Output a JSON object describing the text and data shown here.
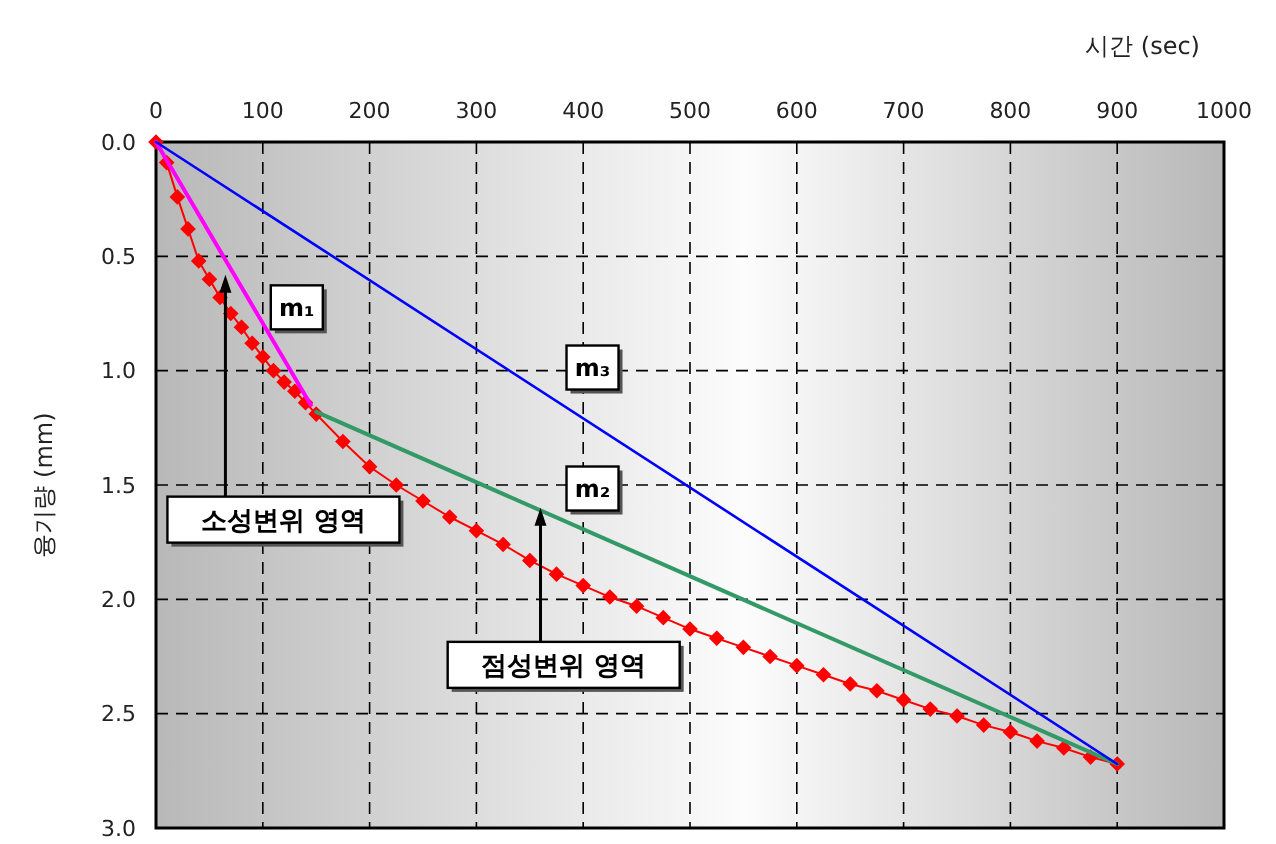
{
  "chart_data": {
    "type": "line",
    "xlabel": "시간 (sec)",
    "ylabel": "융기량 (mm)",
    "xlim": [
      0,
      1000
    ],
    "xticks": [
      0,
      100,
      200,
      300,
      400,
      500,
      600,
      700,
      800,
      900,
      1000
    ],
    "ylim": [
      3,
      0
    ],
    "yticks": [
      {
        "value": 0,
        "label": "0.0"
      },
      {
        "value": 0.5,
        "label": "0.5"
      },
      {
        "value": 1,
        "label": "1.0"
      },
      {
        "value": 1.5,
        "label": "1.5"
      },
      {
        "value": 2,
        "label": "2.0"
      },
      {
        "value": 2.5,
        "label": "2.5"
      },
      {
        "value": 3,
        "label": "3.0"
      }
    ],
    "grid": true,
    "series": [
      {
        "color": "#ff0000",
        "marker": "diamond",
        "x": [
          0,
          10,
          20,
          30,
          40,
          50,
          60,
          70,
          80,
          90,
          100,
          110,
          120,
          130,
          140,
          150,
          175,
          200,
          225,
          250,
          275,
          300,
          325,
          350,
          375,
          400,
          425,
          450,
          475,
          500,
          525,
          550,
          575,
          600,
          625,
          650,
          675,
          700,
          725,
          750,
          775,
          800,
          825,
          850,
          875,
          900
        ],
        "values": [
          0,
          0.09,
          0.24,
          0.38,
          0.52,
          0.6,
          0.68,
          0.75,
          0.81,
          0.88,
          0.94,
          1,
          1.05,
          1.09,
          1.14,
          1.19,
          1.31,
          1.42,
          1.5,
          1.57,
          1.64,
          1.7,
          1.76,
          1.83,
          1.89,
          1.94,
          1.99,
          2.03,
          2.08,
          2.13,
          2.17,
          2.21,
          2.25,
          2.29,
          2.33,
          2.37,
          2.4,
          2.44,
          2.48,
          2.51,
          2.55,
          2.58,
          2.62,
          2.65,
          2.69,
          2.72
        ]
      },
      {
        "name": "m₁",
        "color": "#ff00ff",
        "x": [
          0,
          145
        ],
        "values": [
          0,
          1.15
        ]
      },
      {
        "name": "m₂",
        "color": "#339966",
        "x": [
          150,
          900
        ],
        "values": [
          1.18,
          2.72
        ]
      },
      {
        "name": "m₃",
        "color": "#0000ff",
        "x": [
          0,
          900
        ],
        "values": [
          0,
          2.72
        ]
      }
    ],
    "annotations": [
      {
        "text": "소성변위 영역",
        "x": 65,
        "y": 0.58
      },
      {
        "text": "점성변위 영역",
        "x": 360,
        "y": 1.6
      }
    ]
  }
}
